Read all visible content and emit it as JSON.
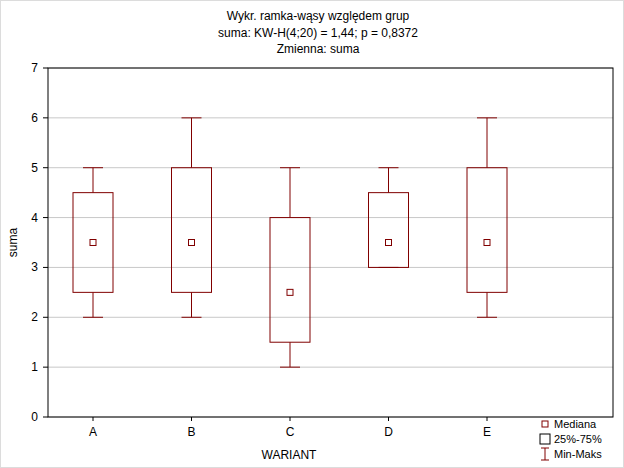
{
  "chart_data": {
    "type": "box",
    "title": "Wykr. ramka-wąsy względem grup",
    "subtitle": [
      "suma:  KW-H(4;20) = 1,44; p = 0,8372",
      "Zmienna:  suma"
    ],
    "x_label": "WARIANT",
    "y_label": "suma",
    "categories": [
      "A",
      "B",
      "C",
      "D",
      "E"
    ],
    "series": [
      {
        "name": "Mediana",
        "marker": "square",
        "values": [
          3.5,
          3.5,
          2.5,
          3.5,
          3.5
        ]
      },
      {
        "name": "25%-75%",
        "low": [
          2.5,
          2.5,
          1.5,
          3,
          2.5
        ],
        "high": [
          4.5,
          5,
          4,
          4.5,
          5
        ]
      },
      {
        "name": "Min-Maks",
        "low": [
          2,
          2,
          1,
          3,
          2
        ],
        "high": [
          5,
          6,
          5,
          5,
          6
        ]
      }
    ],
    "color": "#800000",
    "ylim": [
      0,
      7
    ],
    "yticks": [
      0,
      1,
      2,
      3,
      4,
      5,
      6,
      7
    ],
    "grid": true,
    "legend": "bottom-right"
  }
}
